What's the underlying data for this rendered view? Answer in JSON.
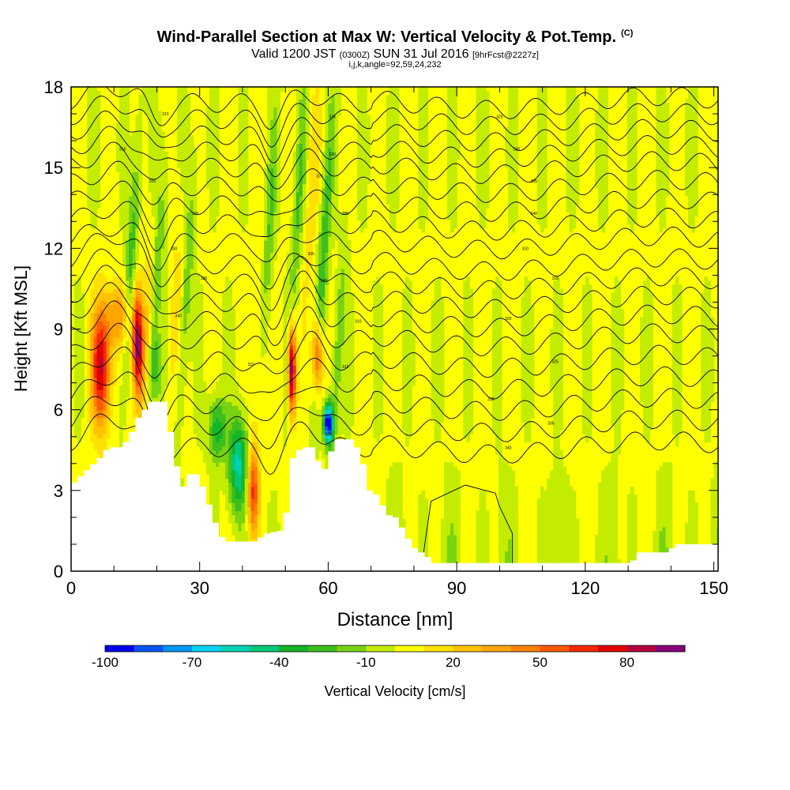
{
  "title": {
    "main": "Wind-Parallel Section at Max W: Vertical Velocity & Pot.Temp.",
    "copyright": "(C)",
    "valid_prefix": "Valid 1200 JST",
    "utc": "(0300Z)",
    "date": "SUN 31 Jul 2016",
    "forecast": "[9hrFcst@2227z]",
    "indices": "i,j,k,angle=92,59,24,232"
  },
  "chart_data": {
    "type": "heatmap",
    "xlabel": "Distance [nm]",
    "ylabel": "Height [Kft MSL]",
    "xlim": [
      0,
      151
    ],
    "ylim": [
      0,
      18
    ],
    "x_ticks": [
      "0",
      "30",
      "60",
      "90",
      "120",
      "150"
    ],
    "y_ticks": [
      "0",
      "3",
      "6",
      "9",
      "12",
      "15",
      "18"
    ],
    "colorbar": {
      "label": "Vertical Velocity [cm/s]",
      "tick_labels": [
        "-100",
        "-70",
        "-40",
        "-10",
        "20",
        "50",
        "80"
      ],
      "levels": [
        -100,
        -90,
        -80,
        -70,
        -60,
        -50,
        -40,
        -30,
        -20,
        -10,
        0,
        10,
        20,
        30,
        40,
        50,
        60,
        70,
        80,
        90,
        100
      ],
      "colors": [
        "#0000f0",
        "#0a55f5",
        "#0096f5",
        "#00d2f0",
        "#00d2b4",
        "#00c878",
        "#14b428",
        "#3cbe1e",
        "#78d214",
        "#c3ec00",
        "#ffff00",
        "#ffe100",
        "#ffc300",
        "#ffa500",
        "#ff8200",
        "#ff5a00",
        "#f52800",
        "#e10000",
        "#b4003c",
        "#820078"
      ]
    },
    "terrain_heights_kft": [
      [
        0,
        3.3
      ],
      [
        2,
        3.6
      ],
      [
        4,
        3.9
      ],
      [
        6,
        4.2
      ],
      [
        8,
        4.6
      ],
      [
        11,
        4.6
      ],
      [
        13,
        5.0
      ],
      [
        15,
        5.7
      ],
      [
        18,
        6.3
      ],
      [
        21,
        6.3
      ],
      [
        23,
        4.8
      ],
      [
        24,
        3.9
      ],
      [
        25,
        3.0
      ],
      [
        27,
        3.6
      ],
      [
        29,
        3.6
      ],
      [
        31,
        2.7
      ],
      [
        33,
        1.8
      ],
      [
        35,
        1.1
      ],
      [
        39,
        1.1
      ],
      [
        42,
        1.1
      ],
      [
        45,
        1.4
      ],
      [
        48,
        1.5
      ],
      [
        50,
        2.4
      ],
      [
        51,
        4.2
      ],
      [
        53,
        4.6
      ],
      [
        56,
        4.6
      ],
      [
        58,
        3.6
      ],
      [
        59,
        4.0
      ],
      [
        61,
        4.9
      ],
      [
        65,
        4.9
      ],
      [
        67,
        4.3
      ],
      [
        69,
        3.0
      ],
      [
        71,
        2.8
      ],
      [
        73,
        2.1
      ],
      [
        75,
        2.0
      ],
      [
        77,
        1.5
      ],
      [
        79,
        0.9
      ],
      [
        82,
        0.6
      ],
      [
        84,
        0.3
      ],
      [
        100,
        0.3
      ],
      [
        110,
        0.3
      ],
      [
        130,
        0.3
      ],
      [
        132,
        0.7
      ],
      [
        138,
        0.7
      ],
      [
        141,
        1.0
      ],
      [
        151,
        1.0
      ]
    ],
    "updraft_cores": [
      {
        "x": 7,
        "y": 7.6,
        "w": 80
      },
      {
        "x": 15.5,
        "y": 8.5,
        "w": 90
      },
      {
        "x": 42.5,
        "y": 3.0,
        "w": 55
      },
      {
        "x": 51.5,
        "y": 7.5,
        "w": 95
      },
      {
        "x": 57.5,
        "y": 8.0,
        "w": 60
      }
    ],
    "downdraft_cores": [
      {
        "x": 60,
        "y": 5.6,
        "w": -100
      },
      {
        "x": 39,
        "y": 4.0,
        "w": -50
      },
      {
        "x": 34,
        "y": 5.5,
        "w": -40
      }
    ],
    "isentrope_labels": [
      "310",
      "315",
      "320",
      "325",
      "330",
      "335",
      "340"
    ]
  }
}
